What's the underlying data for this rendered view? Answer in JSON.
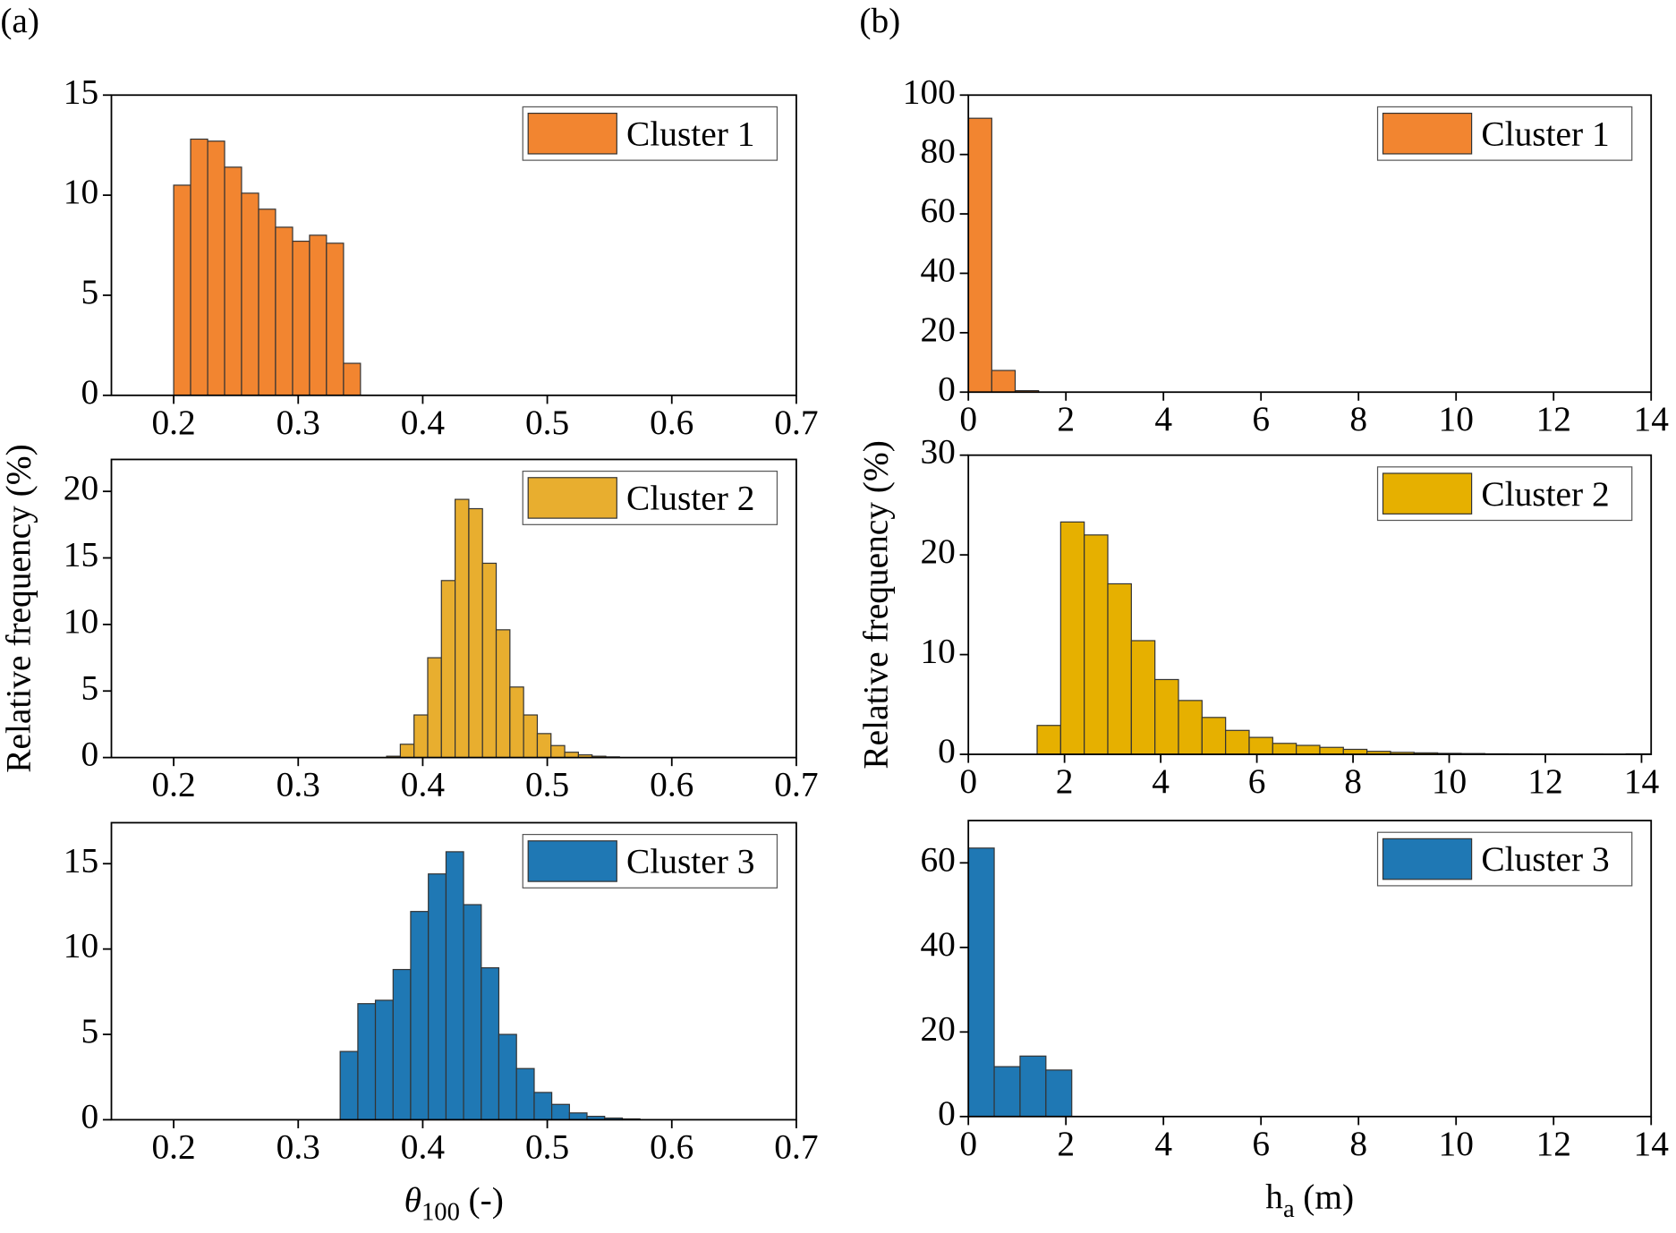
{
  "chart_data": [
    {
      "type": "histogram",
      "panel_label": "(a)",
      "name": "Cluster 1",
      "color": "#f28530",
      "legend": "upper right",
      "bins": [
        0.2,
        0.2136,
        0.2273,
        0.2409,
        0.2545,
        0.2682,
        0.2818,
        0.2955,
        0.3091,
        0.3227,
        0.3364,
        0.35
      ],
      "values": [
        10.5,
        12.8,
        12.7,
        11.4,
        10.1,
        9.3,
        8.4,
        7.7,
        8.0,
        7.6,
        1.6
      ],
      "xlim": [
        0.15,
        0.7
      ],
      "xticks": [
        0.2,
        0.3,
        0.4,
        0.5,
        0.6,
        0.7
      ],
      "ylim": [
        0,
        15
      ],
      "yticks": [
        0,
        5,
        10,
        15
      ]
    },
    {
      "type": "histogram",
      "name": "Cluster 2",
      "color": "#e8ae2f",
      "legend": "upper right",
      "ylabel": "Relative frequency (%)",
      "bins": [
        0.371,
        0.382,
        0.393,
        0.404,
        0.415,
        0.426,
        0.437,
        0.448,
        0.459,
        0.47,
        0.481,
        0.492,
        0.503,
        0.514,
        0.525,
        0.536,
        0.547,
        0.558
      ],
      "values": [
        0.1,
        1.0,
        3.2,
        7.5,
        13.3,
        19.4,
        18.7,
        14.6,
        9.6,
        5.3,
        3.2,
        1.8,
        0.9,
        0.4,
        0.2,
        0.1,
        0.05
      ],
      "xlim": [
        0.15,
        0.7
      ],
      "xticks": [
        0.2,
        0.3,
        0.4,
        0.5,
        0.6,
        0.7
      ],
      "ylim": [
        0,
        22.4
      ],
      "yticks": [
        0,
        5,
        10,
        15,
        20
      ]
    },
    {
      "type": "histogram",
      "name": "Cluster 3",
      "color": "#1f78b4",
      "legend": "upper right",
      "xlabel": "θ",
      "xlabel_sub": "100",
      "xlabel_rest": "(-)",
      "bins": [
        0.3337,
        0.3479,
        0.362,
        0.3762,
        0.3903,
        0.4045,
        0.4187,
        0.4328,
        0.447,
        0.4611,
        0.4753,
        0.4895,
        0.5036,
        0.5178,
        0.5319,
        0.5461,
        0.5603,
        0.5744
      ],
      "values": [
        4.0,
        6.8,
        7.0,
        8.8,
        12.2,
        14.4,
        15.7,
        12.6,
        8.9,
        5.0,
        3.0,
        1.6,
        0.9,
        0.4,
        0.2,
        0.1,
        0.05
      ],
      "xlim": [
        0.15,
        0.7
      ],
      "xticks": [
        0.2,
        0.3,
        0.4,
        0.5,
        0.6,
        0.7
      ],
      "ylim": [
        0,
        17.4
      ],
      "yticks": [
        0,
        5,
        10,
        15
      ]
    },
    {
      "type": "histogram",
      "panel_label": "(b)",
      "name": "Cluster 1",
      "color": "#f28530",
      "legend": "upper right",
      "bins": [
        0,
        0.48,
        0.96,
        1.44
      ],
      "values": [
        92.2,
        7.3,
        0.5
      ],
      "xlim": [
        0,
        14
      ],
      "xticks": [
        0,
        2,
        4,
        6,
        8,
        10,
        12,
        14
      ],
      "ylim": [
        0,
        100
      ],
      "yticks": [
        0,
        20,
        40,
        60,
        80,
        100
      ]
    },
    {
      "type": "histogram",
      "name": "Cluster 2",
      "color": "#e6b000",
      "legend": "upper right",
      "ylabel": "Relative frequency (%)",
      "bins": [
        1.43,
        1.92,
        2.41,
        2.9,
        3.39,
        3.88,
        4.37,
        4.86,
        5.35,
        5.84,
        6.33,
        6.82,
        7.31,
        7.8,
        8.29,
        8.78,
        9.27,
        9.76,
        10.25,
        10.74,
        11.23,
        11.72,
        12.21,
        12.7,
        13.19,
        13.68,
        14.17
      ],
      "values": [
        2.9,
        23.3,
        22.0,
        17.1,
        11.4,
        7.5,
        5.4,
        3.7,
        2.4,
        1.7,
        1.1,
        0.9,
        0.7,
        0.5,
        0.3,
        0.2,
        0.15,
        0.1,
        0.08,
        0.05,
        0.04,
        0.03,
        0.02,
        0.02,
        0.01,
        0.05
      ],
      "xlim": [
        0,
        14.2
      ],
      "xticks": [
        0,
        2,
        4,
        6,
        8,
        10,
        12,
        14
      ],
      "ylim": [
        0,
        30
      ],
      "yticks": [
        0,
        10,
        20,
        30
      ]
    },
    {
      "type": "histogram",
      "name": "Cluster 3",
      "color": "#1f78b4",
      "legend": "upper right",
      "xlabel": "h",
      "xlabel_sub": "a",
      "xlabel_rest": "(m)",
      "bins": [
        0,
        0.53,
        1.06,
        1.59,
        2.12
      ],
      "values": [
        63.5,
        11.8,
        14.3,
        11.0
      ],
      "xlim": [
        0,
        14
      ],
      "xticks": [
        0,
        2,
        4,
        6,
        8,
        10,
        12,
        14
      ],
      "ylim": [
        0,
        70
      ],
      "yticks": [
        0,
        20,
        40,
        60
      ]
    }
  ]
}
